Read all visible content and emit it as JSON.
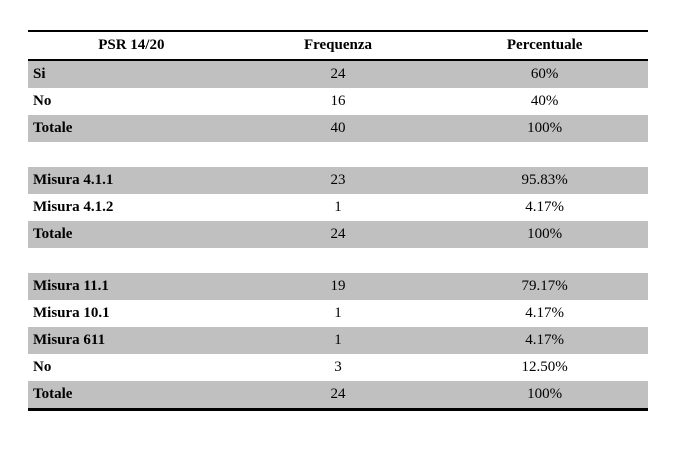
{
  "table": {
    "title_column_header": "PSR 14/20",
    "headers": [
      "PSR 14/20",
      "Frequenza",
      "Percentuale"
    ],
    "colors": {
      "row_shade": "#c0c0c0",
      "border": "#000000",
      "text": "#000000",
      "background": "#ffffff"
    },
    "sections": [
      {
        "rows": [
          {
            "label": "Si",
            "frequenza": "24",
            "percentuale": "60%"
          },
          {
            "label": "No",
            "frequenza": "16",
            "percentuale": "40%"
          },
          {
            "label": "Totale",
            "frequenza": "40",
            "percentuale": "100%"
          }
        ]
      },
      {
        "rows": [
          {
            "label": "Misura 4.1.1",
            "frequenza": "23",
            "percentuale": "95.83%"
          },
          {
            "label": "Misura 4.1.2",
            "frequenza": "1",
            "percentuale": "4.17%"
          },
          {
            "label": "Totale",
            "frequenza": "24",
            "percentuale": "100%"
          }
        ]
      },
      {
        "rows": [
          {
            "label": "Misura 11.1",
            "frequenza": "19",
            "percentuale": "79.17%"
          },
          {
            "label": "Misura 10.1",
            "frequenza": "1",
            "percentuale": "4.17%"
          },
          {
            "label": "Misura 611",
            "frequenza": "1",
            "percentuale": "4.17%"
          },
          {
            "label": "No",
            "frequenza": "3",
            "percentuale": "12.50%"
          },
          {
            "label": "Totale",
            "frequenza": "24",
            "percentuale": "100%"
          }
        ]
      }
    ]
  }
}
